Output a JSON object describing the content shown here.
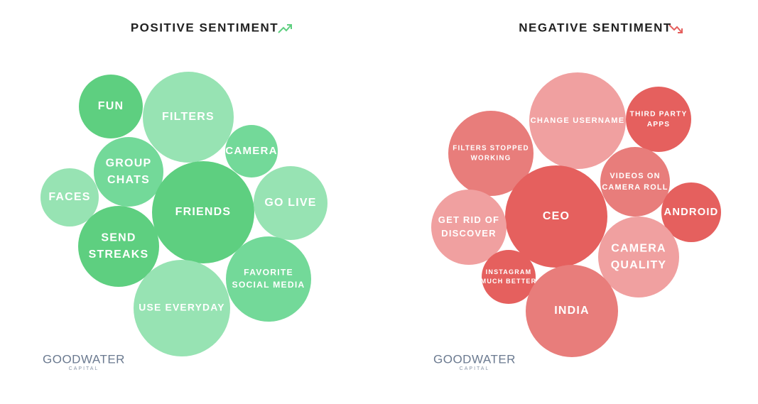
{
  "panels": [
    {
      "title": "POSITIVE SENTIMENT",
      "logo": {
        "name": "GOODWATER",
        "sub": "CAPITAL"
      },
      "nodes": [
        {
          "lines": [
            "FUN"
          ],
          "color": "#5ecf80"
        },
        {
          "lines": [
            "FILTERS"
          ],
          "color": "#97e3b3"
        },
        {
          "lines": [
            "CAMERA"
          ],
          "color": "#73d999"
        },
        {
          "lines": [
            "GROUP",
            "CHATS"
          ],
          "color": "#73d999"
        },
        {
          "lines": [
            "FACES"
          ],
          "color": "#97e3b3"
        },
        {
          "lines": [
            "FRIENDS"
          ],
          "color": "#5ecf80"
        },
        {
          "lines": [
            "GO LIVE"
          ],
          "color": "#97e3b3"
        },
        {
          "lines": [
            "SEND",
            "STREAKS"
          ],
          "color": "#5ecf80"
        },
        {
          "lines": [
            "FAVORITE",
            "SOCIAL MEDIA"
          ],
          "color": "#73d999"
        },
        {
          "lines": [
            "USE EVERYDAY"
          ],
          "color": "#97e3b3"
        }
      ]
    },
    {
      "title": "NEGATIVE SENTIMENT",
      "logo": {
        "name": "GOODWATER",
        "sub": "CAPITAL"
      },
      "nodes": [
        {
          "lines": [
            "CHANGE USERNAME"
          ],
          "color": "#f0a0a0"
        },
        {
          "lines": [
            "THIRD PARTY",
            "APPS"
          ],
          "color": "#e5605e"
        },
        {
          "lines": [
            "FILTERS STOPPED",
            "WORKING"
          ],
          "color": "#e87d7b"
        },
        {
          "lines": [
            "VIDEOS ON",
            "CAMERA ROLL"
          ],
          "color": "#e87d7b"
        },
        {
          "lines": [
            "CEO"
          ],
          "color": "#e5605e"
        },
        {
          "lines": [
            "ANDROID"
          ],
          "color": "#e5605e"
        },
        {
          "lines": [
            "GET RID OF",
            "DISCOVER"
          ],
          "color": "#f0a0a0"
        },
        {
          "lines": [
            "CAMERA",
            "QUALITY"
          ],
          "color": "#f0a0a0"
        },
        {
          "lines": [
            "INSTAGRAM",
            "MUCH BETTER"
          ],
          "color": "#e5605e"
        },
        {
          "lines": [
            "INDIA"
          ],
          "color": "#e87d7b"
        }
      ]
    }
  ]
}
